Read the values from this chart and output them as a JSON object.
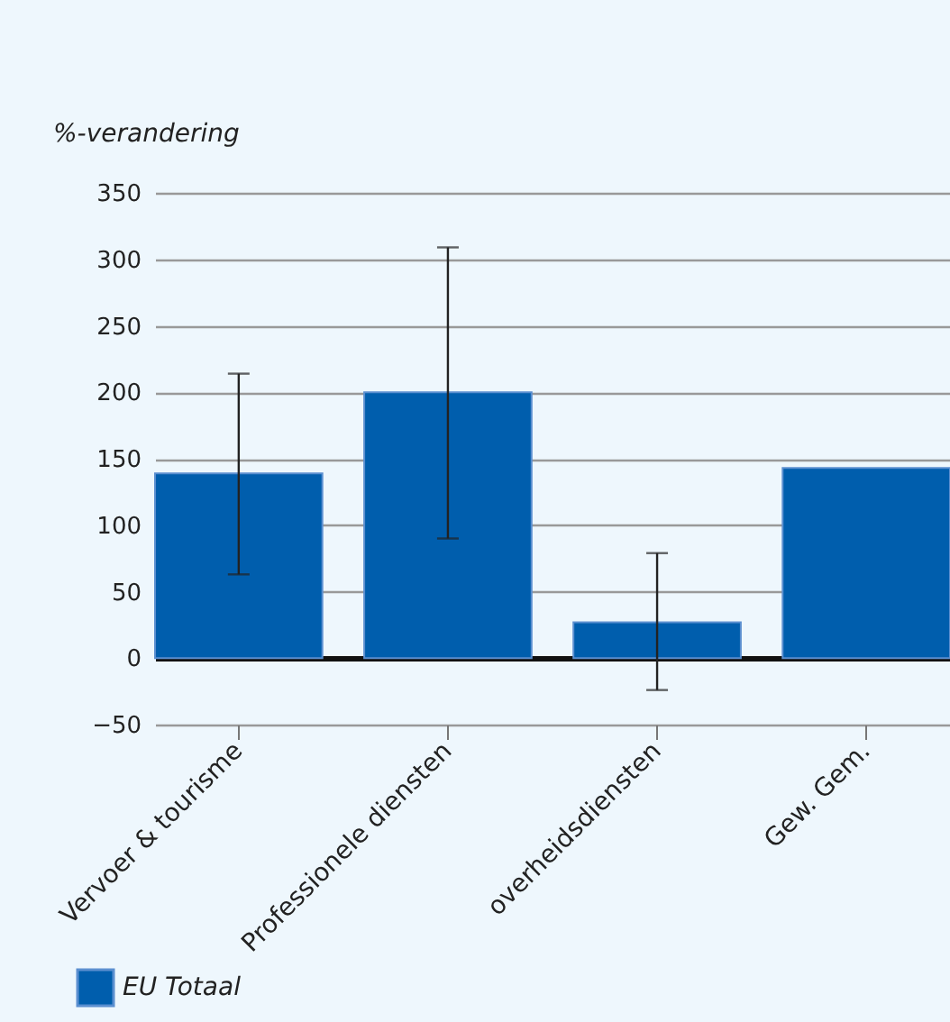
{
  "chart_data": {
    "type": "bar",
    "ylabel": "%-verandering",
    "categories": [
      "Vervoer & tourisme",
      "Professionele diensten",
      "overheidsdiensten",
      "Gew. Gem."
    ],
    "series": [
      {
        "name": "EU Totaal",
        "color": "#005ead",
        "values": [
          139,
          200,
          27,
          143
        ],
        "errors": [
          [
            63,
            214
          ],
          [
            90,
            309
          ],
          [
            -24,
            79
          ],
          null
        ]
      }
    ],
    "ylim": [
      -50,
      350
    ],
    "yticks": [
      -50,
      0,
      50,
      100,
      150,
      200,
      250,
      300,
      350
    ],
    "grid": "y",
    "legend": "bottom left"
  }
}
